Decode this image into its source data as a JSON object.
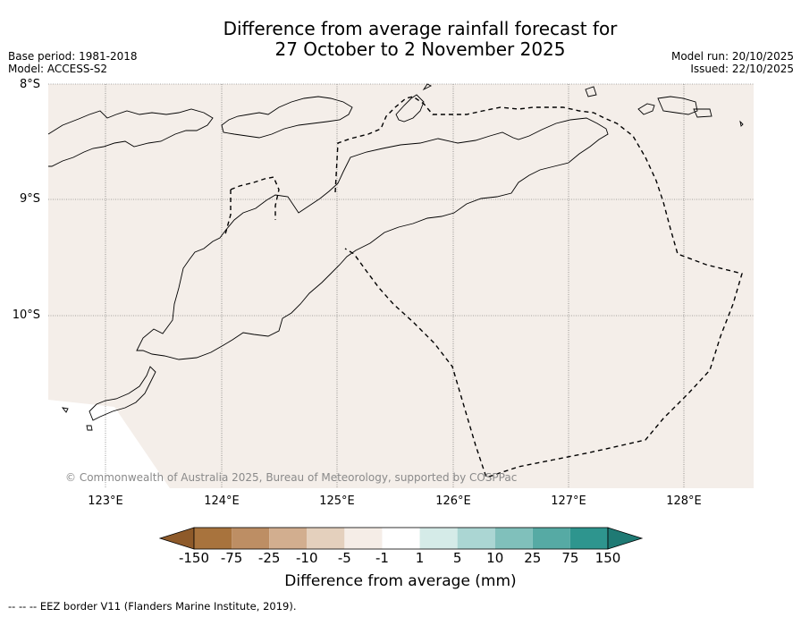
{
  "title": {
    "line1": "Difference from average rainfall forecast for",
    "line2": "27 October to 2 November 2025"
  },
  "meta_left": {
    "base_period": "Base period: 1981-2018",
    "model": "Model: ACCESS-S2"
  },
  "meta_right": {
    "model_run": "Model run: 20/10/2025",
    "issued": "Issued: 22/10/2025"
  },
  "latitude_labels": [
    "8°S",
    "9°S",
    "10°S"
  ],
  "longitude_labels": [
    "123°E",
    "124°E",
    "125°E",
    "126°E",
    "127°E",
    "128°E"
  ],
  "copyright": "© Commonwealth of Australia 2025, Bureau of Meteorology, supported by COSPPac",
  "colorbar": {
    "label": "Difference from average (mm)",
    "ticks": [
      "-150",
      "-75",
      "-25",
      "-10",
      "-5",
      "-1",
      "1",
      "5",
      "10",
      "25",
      "75",
      "150"
    ],
    "colors": [
      "#a8733d",
      "#bd8e64",
      "#d2ae8f",
      "#e4d0bd",
      "#f5ede7",
      "#ffffff",
      "#d5ebe8",
      "#abd6d3",
      "#80c0bb",
      "#56aaa4",
      "#2e958e"
    ],
    "under_color": "#8e5a2a",
    "over_color": "#1f7a74"
  },
  "map_colors": {
    "background": "#f4eee9",
    "missing": "#ffffff"
  },
  "footer": "--  --  -- EEZ border V11 (Flanders Marine Institute, 2019)."
}
